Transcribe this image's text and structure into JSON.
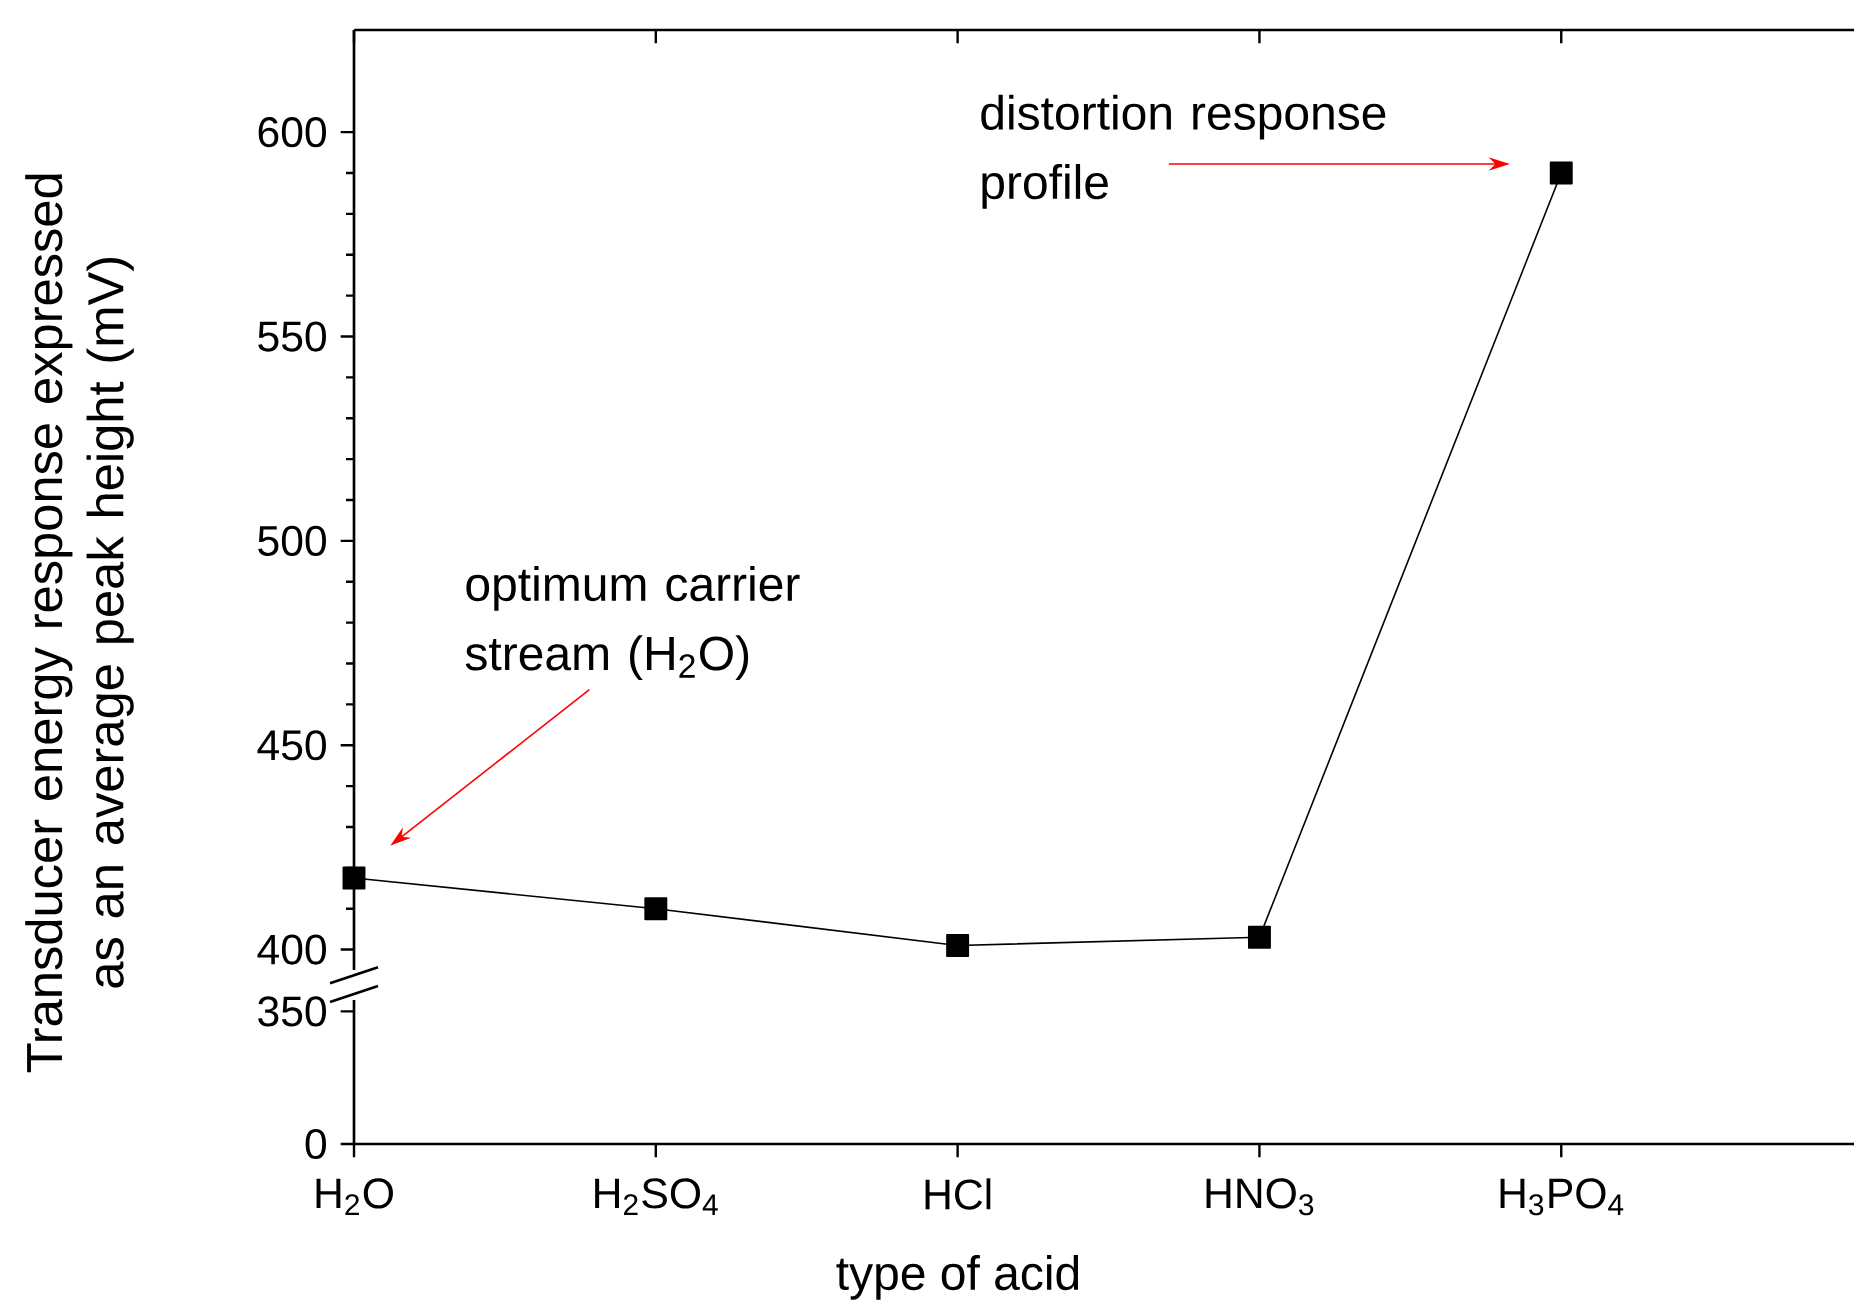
{
  "chart_data": [
    {
      "type": "line",
      "ylabel": "Transducer energy response expressed as an average peak height (mV)",
      "series": [
        {
          "color": "#000000",
          "values": [
            417.5,
            410,
            401,
            403,
            590
          ]
        }
      ],
      "ylim": [
        395,
        625
      ],
      "yticks": [
        400,
        450,
        500,
        550,
        600
      ],
      "marker": "square",
      "line_style": "solid",
      "tick_labels": "y",
      "annotations": [
        "optimum carrier stream (H$_{2}$O)",
        "distortion response profile"
      ]
    },
    {
      "type": "line",
      "xlabel": "type of acid",
      "categories": [
        "H$_{2}$O",
        "H$_{2}$SO$_{4}$",
        "HCl",
        "HNO$_{3}$",
        "H$_{3}$PO$_{4}$"
      ],
      "series": [
        {
          "color": "#000000",
          "values": [
            null,
            null,
            null,
            null,
            null
          ]
        }
      ],
      "ylim": [
        0,
        380
      ],
      "yticks": [
        0,
        350
      ]
    }
  ]
}
